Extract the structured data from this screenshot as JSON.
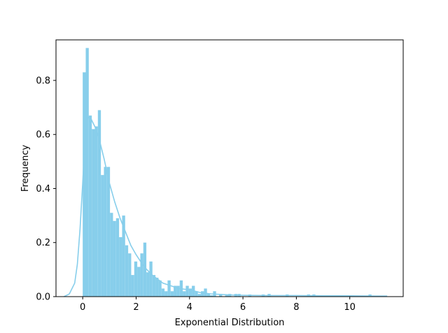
{
  "chart_data": {
    "type": "bar",
    "title": "",
    "xlabel": "Exponential Distribution",
    "ylabel": "Frequency",
    "xlim": [
      -1.0,
      12.0
    ],
    "ylim": [
      0.0,
      0.95
    ],
    "xticks": [
      0,
      2,
      4,
      6,
      8,
      10
    ],
    "yticks": [
      0.0,
      0.2,
      0.4,
      0.6,
      0.8
    ],
    "bar_color": "#87ceeb",
    "kde_color": "#87ceeb",
    "bin_width": 0.1135,
    "bin_start": 0.0,
    "histogram_density": [
      0.83,
      0.92,
      0.67,
      0.62,
      0.63,
      0.69,
      0.45,
      0.48,
      0.48,
      0.31,
      0.28,
      0.29,
      0.22,
      0.3,
      0.19,
      0.16,
      0.08,
      0.13,
      0.11,
      0.16,
      0.2,
      0.09,
      0.13,
      0.08,
      0.07,
      0.06,
      0.03,
      0.02,
      0.06,
      0.02,
      0.04,
      0.04,
      0.06,
      0.02,
      0.04,
      0.03,
      0.04,
      0.02,
      0.01,
      0.02,
      0.03,
      0.01,
      0.005,
      0.02,
      0.0,
      0.01,
      0.0,
      0.005,
      0.01,
      0.0,
      0.01,
      0.0,
      0.0,
      0.0,
      0.0,
      0.0,
      0.0,
      0.0,
      0.0,
      0.0,
      0.0,
      0.01,
      0.0,
      0.0,
      0.0,
      0.0,
      0.0,
      0.0,
      0.0,
      0.0,
      0.0,
      0.0,
      0.0,
      0.0,
      0.0,
      0.0,
      0.0,
      0.0,
      0.0,
      0.0,
      0.0,
      0.0,
      0.0,
      0.0,
      0.0,
      0.0,
      0.0,
      0.0,
      0.0,
      0.0,
      0.0,
      0.0,
      0.0,
      0.0,
      0.0,
      0.0,
      0.0,
      0.0,
      0.0,
      0.0
    ],
    "sparse_bars": [
      {
        "x": 5.8,
        "y": 0.01
      },
      {
        "x": 6.2,
        "y": 0.008
      },
      {
        "x": 6.7,
        "y": 0.008
      },
      {
        "x": 7.6,
        "y": 0.008
      },
      {
        "x": 8.4,
        "y": 0.008
      },
      {
        "x": 8.6,
        "y": 0.008
      },
      {
        "x": 10.7,
        "y": 0.008
      }
    ],
    "kde": {
      "x": [
        -0.7,
        -0.5,
        -0.3,
        -0.2,
        -0.1,
        0.0,
        0.05,
        0.1,
        0.15,
        0.2,
        0.25,
        0.3,
        0.4,
        0.5,
        0.6,
        0.7,
        0.8,
        1.0,
        1.2,
        1.4,
        1.6,
        1.8,
        2.0,
        2.2,
        2.4,
        2.6,
        2.8,
        3.0,
        3.3,
        3.6,
        4.0,
        4.4,
        4.8,
        5.2,
        5.6,
        6.0,
        7.0,
        8.0,
        9.0,
        10.0,
        11.0,
        11.4
      ],
      "y": [
        0.0,
        0.01,
        0.05,
        0.12,
        0.25,
        0.42,
        0.52,
        0.6,
        0.64,
        0.66,
        0.665,
        0.66,
        0.64,
        0.62,
        0.59,
        0.55,
        0.51,
        0.42,
        0.35,
        0.29,
        0.24,
        0.19,
        0.155,
        0.125,
        0.1,
        0.08,
        0.065,
        0.05,
        0.04,
        0.03,
        0.025,
        0.015,
        0.01,
        0.008,
        0.006,
        0.005,
        0.004,
        0.004,
        0.003,
        0.003,
        0.002,
        0.002
      ]
    }
  }
}
